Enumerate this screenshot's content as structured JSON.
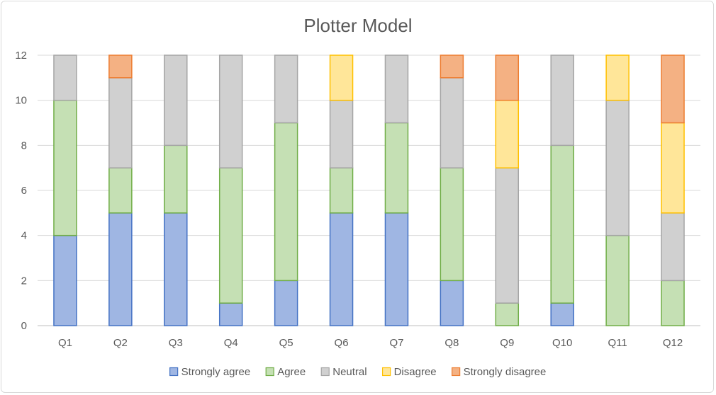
{
  "chart_data": {
    "type": "bar",
    "stacked": true,
    "title": "Plotter Model",
    "categories": [
      "Q1",
      "Q2",
      "Q3",
      "Q4",
      "Q5",
      "Q6",
      "Q7",
      "Q8",
      "Q9",
      "Q10",
      "Q11",
      "Q12"
    ],
    "ylim": [
      0,
      12
    ],
    "yticks": [
      0,
      2,
      4,
      6,
      8,
      10,
      12
    ],
    "grid": true,
    "legend_position": "bottom",
    "series": [
      {
        "name": "Strongly agree",
        "fill": "#9fb6e3",
        "stroke": "#4472c4",
        "values": [
          4,
          5,
          5,
          1,
          2,
          5,
          5,
          2,
          0,
          1,
          0,
          0
        ]
      },
      {
        "name": "Agree",
        "fill": "#c5e0b4",
        "stroke": "#70ad47",
        "values": [
          6,
          2,
          3,
          6,
          7,
          2,
          4,
          5,
          1,
          7,
          4,
          2
        ]
      },
      {
        "name": "Neutral",
        "fill": "#d0d0d0",
        "stroke": "#a5a5a5",
        "values": [
          2,
          4,
          4,
          5,
          3,
          3,
          3,
          4,
          6,
          4,
          6,
          3
        ]
      },
      {
        "name": "Disagree",
        "fill": "#ffe699",
        "stroke": "#ffc000",
        "values": [
          0,
          0,
          0,
          0,
          0,
          2,
          0,
          0,
          3,
          0,
          2,
          4
        ]
      },
      {
        "name": "Strongly disagree",
        "fill": "#f4b183",
        "stroke": "#ed7d31",
        "values": [
          0,
          1,
          0,
          0,
          0,
          0,
          0,
          1,
          2,
          0,
          0,
          3
        ]
      }
    ]
  }
}
